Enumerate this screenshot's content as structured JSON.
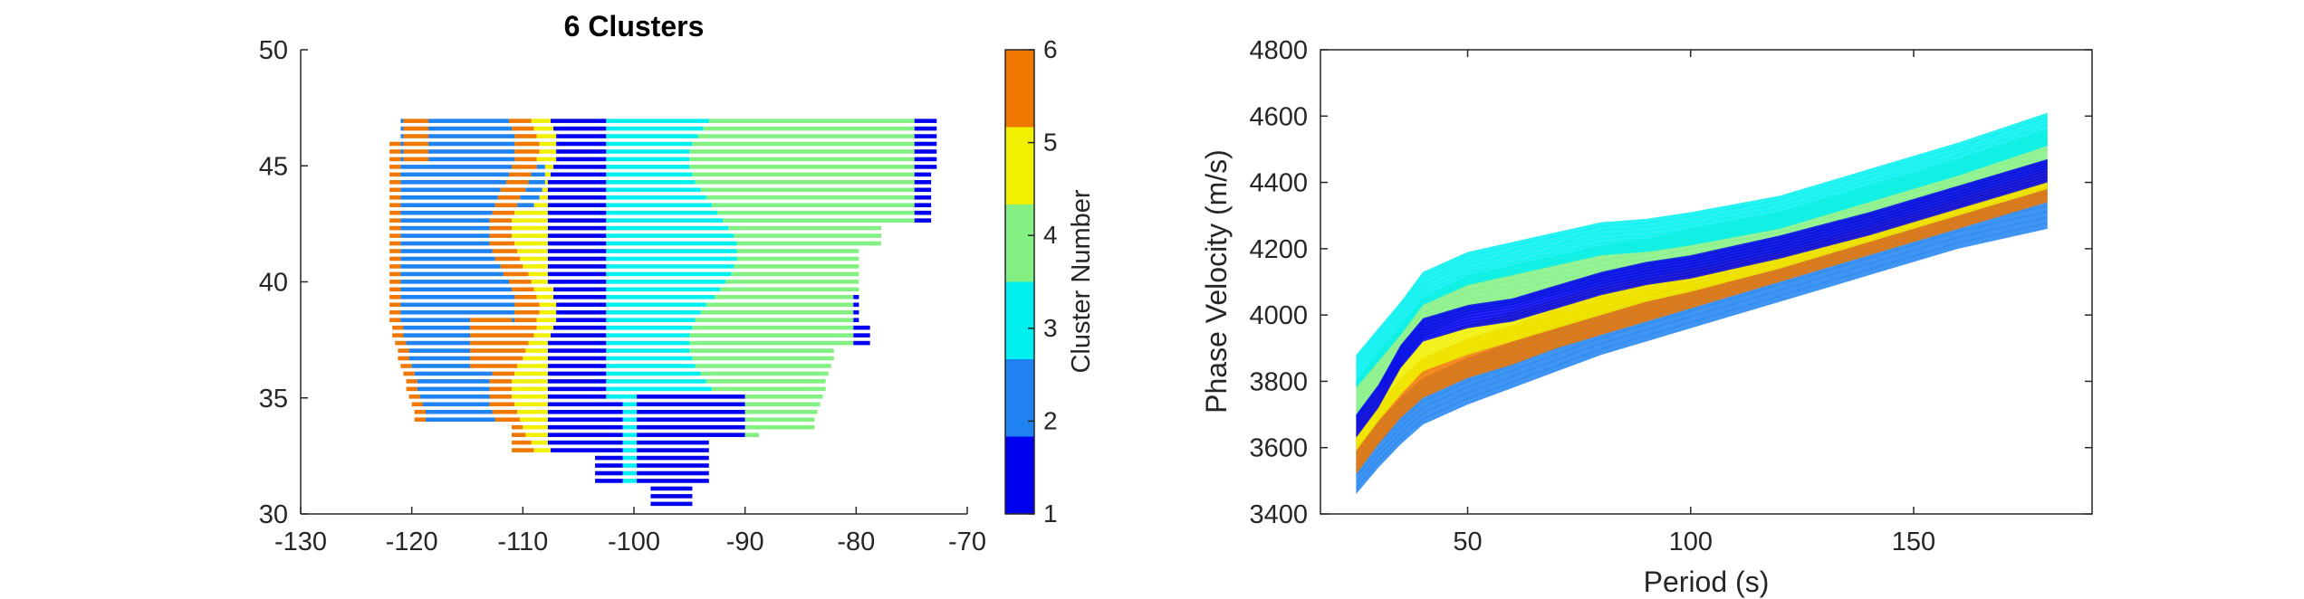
{
  "chart_data": [
    {
      "type": "heatmap",
      "title": "6 Clusters",
      "xlabel": "",
      "ylabel": "",
      "xlim": [
        -130,
        -70
      ],
      "ylim": [
        30,
        50
      ],
      "xticks": [
        -130,
        -120,
        -110,
        -100,
        -90,
        -80,
        -70
      ],
      "yticks": [
        30,
        35,
        40,
        45,
        50
      ],
      "colorbar": {
        "label": "Cluster Number",
        "range": [
          1,
          6
        ],
        "ticks": [
          1,
          2,
          3,
          4,
          5,
          6
        ],
        "colors": [
          "#0000f0",
          "#1e82f0",
          "#00f0f0",
          "#82f082",
          "#f0f000",
          "#f07800"
        ]
      },
      "regions": [
        {
          "cluster": 2,
          "area": "Far west (approx. -122 to -112 lon, 33 to 47 lat)"
        },
        {
          "cluster": 6,
          "area": "Coastal strip and central western band (approx. -121 to -108 lon)"
        },
        {
          "cluster": 5,
          "area": "Thin belt near -108 to -104 lon"
        },
        {
          "cluster": 1,
          "area": "Rocky Mountain front (-108 to -102 lon), southern plains (-100 to -90 lon, 31 to 35 lat), east coast (-80 to -73 lon)"
        },
        {
          "cluster": 3,
          "area": "Central plains (approx. -100 to -88 lon, 33 to 47 lat)"
        },
        {
          "cluster": 4,
          "area": "Eastern interior (approx. -92 to -75 lon, 33 to 47 lat)"
        }
      ]
    },
    {
      "type": "line",
      "title": "",
      "xlabel": "Period (s)",
      "ylabel": "Phase Velocity (m/s)",
      "xlim": [
        17,
        190
      ],
      "ylim": [
        3400,
        4800
      ],
      "xticks": [
        50,
        100,
        150
      ],
      "yticks": [
        3400,
        3600,
        3800,
        4000,
        4200,
        4400,
        4600,
        4800
      ],
      "period": [
        25,
        30,
        35,
        40,
        50,
        60,
        70,
        80,
        90,
        100,
        120,
        140,
        160,
        180
      ],
      "series": [
        {
          "cluster": 3,
          "color": "#00f0f0",
          "values": [
            3820,
            3900,
            3980,
            4070,
            4130,
            4160,
            4190,
            4220,
            4230,
            4250,
            4300,
            4380,
            4460,
            4550
          ]
        },
        {
          "cluster": 4,
          "color": "#82f082",
          "values": [
            3740,
            3830,
            3910,
            3990,
            4060,
            4090,
            4120,
            4150,
            4170,
            4200,
            4250,
            4330,
            4410,
            4500
          ]
        },
        {
          "cluster": 1,
          "color": "#0000f0",
          "values": [
            3670,
            3760,
            3880,
            3960,
            4000,
            4020,
            4060,
            4100,
            4130,
            4150,
            4210,
            4280,
            4360,
            4440
          ]
        },
        {
          "cluster": 5,
          "color": "#f0f000",
          "values": [
            3640,
            3730,
            3810,
            3880,
            3930,
            3970,
            4010,
            4050,
            4090,
            4120,
            4190,
            4270,
            4350,
            4430
          ]
        },
        {
          "cluster": 6,
          "color": "#f07800",
          "values": [
            3580,
            3670,
            3750,
            3810,
            3870,
            3910,
            3960,
            4000,
            4040,
            4080,
            4160,
            4240,
            4320,
            4400
          ]
        },
        {
          "cluster": 2,
          "color": "#1e82f0",
          "values": [
            3530,
            3610,
            3680,
            3740,
            3800,
            3850,
            3900,
            3950,
            3990,
            4030,
            4110,
            4190,
            4270,
            4330
          ]
        }
      ]
    }
  ]
}
